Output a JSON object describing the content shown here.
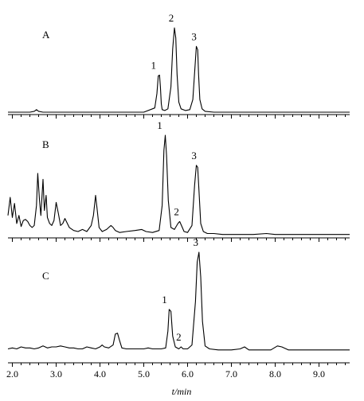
{
  "chart_data": {
    "type": "line",
    "xlabel": "t/min",
    "x_ticks": [
      "2.0",
      "3.0",
      "4.0",
      "5.0",
      "6.0",
      "7.0",
      "8.0",
      "9.0"
    ],
    "xlim": [
      1.9,
      9.7
    ],
    "panels": [
      {
        "panel": "A",
        "series": [
          {
            "x": [
              1.9,
              2.4,
              2.5,
              2.55,
              2.6,
              2.7,
              3.0,
              4.0,
              5.0,
              5.25,
              5.3,
              5.33,
              5.36,
              5.38,
              5.4,
              5.42,
              5.48,
              5.55,
              5.62,
              5.66,
              5.7,
              5.73,
              5.76,
              5.8,
              5.85,
              5.95,
              6.05,
              6.12,
              6.17,
              6.2,
              6.23,
              6.25,
              6.28,
              6.33,
              6.4,
              6.6,
              7.0,
              8.0,
              9.0,
              9.7
            ],
            "y": [
              0,
              0,
              0.01,
              0.03,
              0.01,
              0,
              0,
              0,
              0,
              0.05,
              0.22,
              0.43,
              0.44,
              0.3,
              0.1,
              0.03,
              0.02,
              0.04,
              0.3,
              0.75,
              1.0,
              0.88,
              0.45,
              0.12,
              0.04,
              0.02,
              0.03,
              0.15,
              0.55,
              0.78,
              0.74,
              0.45,
              0.15,
              0.04,
              0.01,
              0,
              0,
              0,
              0,
              0
            ]
          }
        ],
        "peaks": [
          {
            "label": "1",
            "x": 5.35
          },
          {
            "label": "2",
            "x": 5.7
          },
          {
            "label": "3",
            "x": 6.22
          }
        ]
      },
      {
        "panel": "B",
        "series": [
          {
            "x": [
              1.9,
              1.95,
              2.0,
              2.05,
              2.1,
              2.15,
              2.2,
              2.25,
              2.3,
              2.35,
              2.4,
              2.45,
              2.5,
              2.55,
              2.58,
              2.62,
              2.65,
              2.7,
              2.73,
              2.77,
              2.8,
              2.85,
              2.9,
              2.95,
              3.0,
              3.05,
              3.1,
              3.15,
              3.2,
              3.3,
              3.4,
              3.5,
              3.6,
              3.7,
              3.8,
              3.85,
              3.9,
              3.93,
              3.98,
              4.05,
              4.15,
              4.25,
              4.3,
              4.35,
              4.45,
              4.6,
              4.8,
              4.95,
              5.05,
              5.2,
              5.35,
              5.42,
              5.46,
              5.49,
              5.52,
              5.56,
              5.62,
              5.7,
              5.78,
              5.82,
              5.86,
              5.92,
              6.0,
              6.1,
              6.16,
              6.2,
              6.23,
              6.26,
              6.3,
              6.36,
              6.45,
              6.6,
              6.8,
              7.0,
              7.5,
              7.8,
              8.0,
              8.3,
              8.6,
              9.0,
              9.3,
              9.7
            ],
            "y": [
              0.2,
              0.38,
              0.18,
              0.32,
              0.12,
              0.2,
              0.09,
              0.15,
              0.16,
              0.14,
              0.1,
              0.08,
              0.1,
              0.3,
              0.62,
              0.35,
              0.2,
              0.56,
              0.25,
              0.4,
              0.18,
              0.12,
              0.1,
              0.15,
              0.33,
              0.22,
              0.1,
              0.12,
              0.17,
              0.08,
              0.05,
              0.04,
              0.06,
              0.04,
              0.1,
              0.2,
              0.4,
              0.28,
              0.08,
              0.04,
              0.06,
              0.1,
              0.08,
              0.05,
              0.03,
              0.04,
              0.05,
              0.06,
              0.04,
              0.03,
              0.05,
              0.3,
              0.85,
              1.0,
              0.8,
              0.35,
              0.08,
              0.06,
              0.12,
              0.14,
              0.1,
              0.04,
              0.03,
              0.1,
              0.5,
              0.7,
              0.68,
              0.45,
              0.12,
              0.04,
              0.02,
              0.02,
              0.01,
              0.01,
              0.01,
              0.02,
              0.01,
              0.01,
              0.01,
              0.01,
              0.01,
              0.01
            ]
          }
        ],
        "peaks": [
          {
            "label": "1",
            "x": 5.49
          },
          {
            "label": "2",
            "x": 5.82
          },
          {
            "label": "3",
            "x": 6.22
          }
        ]
      },
      {
        "panel": "C",
        "series": [
          {
            "x": [
              1.9,
              2.0,
              2.1,
              2.2,
              2.3,
              2.4,
              2.5,
              2.6,
              2.7,
              2.8,
              2.9,
              3.0,
              3.1,
              3.2,
              3.3,
              3.4,
              3.5,
              3.6,
              3.7,
              3.8,
              3.9,
              4.0,
              4.05,
              4.1,
              4.2,
              4.3,
              4.35,
              4.4,
              4.45,
              4.5,
              4.6,
              4.8,
              5.0,
              5.1,
              5.2,
              5.4,
              5.5,
              5.55,
              5.58,
              5.62,
              5.66,
              5.72,
              5.8,
              5.85,
              5.9,
              6.0,
              6.1,
              6.18,
              6.22,
              6.26,
              6.3,
              6.34,
              6.4,
              6.5,
              6.7,
              7.0,
              7.2,
              7.3,
              7.4,
              7.6,
              7.9,
              8.05,
              8.15,
              8.3,
              8.6,
              9.0,
              9.7
            ],
            "y": [
              0.02,
              0.03,
              0.02,
              0.04,
              0.03,
              0.03,
              0.02,
              0.03,
              0.05,
              0.03,
              0.04,
              0.04,
              0.05,
              0.04,
              0.03,
              0.03,
              0.02,
              0.02,
              0.04,
              0.03,
              0.02,
              0.04,
              0.06,
              0.04,
              0.03,
              0.06,
              0.17,
              0.18,
              0.1,
              0.03,
              0.02,
              0.02,
              0.02,
              0.03,
              0.02,
              0.02,
              0.03,
              0.2,
              0.42,
              0.4,
              0.15,
              0.04,
              0.02,
              0.04,
              0.02,
              0.02,
              0.06,
              0.5,
              0.9,
              1.0,
              0.75,
              0.3,
              0.05,
              0.02,
              0.01,
              0.01,
              0.02,
              0.04,
              0.01,
              0.01,
              0.01,
              0.05,
              0.04,
              0.01,
              0.01,
              0.01,
              0.01
            ]
          }
        ],
        "peaks": [
          {
            "label": "1",
            "x": 5.6
          },
          {
            "label": "2",
            "x": 5.87
          },
          {
            "label": "3",
            "x": 6.26
          }
        ]
      }
    ]
  }
}
